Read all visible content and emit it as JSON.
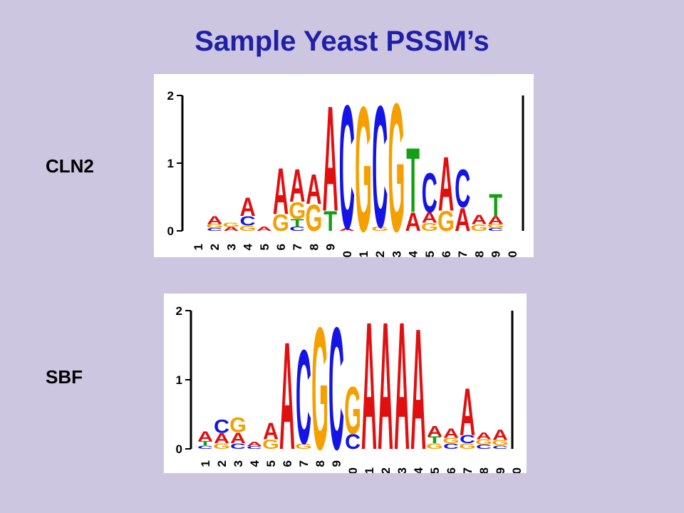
{
  "page": {
    "title": "Sample Yeast PSSM’s"
  },
  "colors": {
    "background": "#cdc6e1",
    "title": "#1f1fa8",
    "A": "#e01010",
    "C": "#1414e6",
    "G": "#f5a000",
    "T": "#14a014"
  },
  "chart_data": [
    {
      "type": "sequence-logo",
      "label": "CLN2",
      "ylim": [
        0,
        2
      ],
      "yticks": [
        "0",
        "1",
        "2"
      ],
      "categories": [
        "1",
        "2",
        "3",
        "4",
        "5",
        "6",
        "7",
        "8",
        "9",
        "10",
        "11",
        "12",
        "13",
        "14",
        "15",
        "16",
        "17",
        "18",
        "19",
        "20"
      ],
      "stacks": [
        [],
        [
          [
            "C",
            0.04
          ],
          [
            "G",
            0.06
          ],
          [
            "A",
            0.12
          ]
        ],
        [
          [
            "A",
            0.06
          ],
          [
            "G",
            0.06
          ]
        ],
        [
          [
            "G",
            0.08
          ],
          [
            "C",
            0.14
          ],
          [
            "A",
            0.28
          ]
        ],
        [
          [
            "A",
            0.06
          ]
        ],
        [
          [
            "G",
            0.25
          ],
          [
            "A",
            0.7
          ]
        ],
        [
          [
            "C",
            0.06
          ],
          [
            "T",
            0.12
          ],
          [
            "G",
            0.25
          ],
          [
            "A",
            0.5
          ]
        ],
        [
          [
            "G",
            0.4
          ],
          [
            "A",
            0.45
          ]
        ],
        [
          [
            "T",
            0.3
          ],
          [
            "A",
            1.6
          ]
        ],
        [
          [
            "A",
            0.04
          ],
          [
            "C",
            1.88
          ]
        ],
        [
          [
            "G",
            1.9
          ]
        ],
        [
          [
            "G",
            0.06
          ],
          [
            "C",
            1.85
          ]
        ],
        [
          [
            "G",
            1.95
          ]
        ],
        [
          [
            "A",
            0.28
          ],
          [
            "T",
            0.98
          ]
        ],
        [
          [
            "G",
            0.12
          ],
          [
            "A",
            0.16
          ],
          [
            "C",
            0.6
          ]
        ],
        [
          [
            "G",
            0.3
          ],
          [
            "A",
            0.82
          ]
        ],
        [
          [
            "A",
            0.35
          ],
          [
            "C",
            0.58
          ]
        ],
        [
          [
            "G",
            0.1
          ],
          [
            "A",
            0.14
          ]
        ],
        [
          [
            "C",
            0.04
          ],
          [
            "G",
            0.06
          ],
          [
            "A",
            0.12
          ],
          [
            "T",
            0.34
          ]
        ],
        []
      ]
    },
    {
      "type": "sequence-logo",
      "label": "SBF",
      "ylim": [
        0,
        2
      ],
      "yticks": [
        "0",
        "1",
        "2"
      ],
      "categories": [
        "1",
        "2",
        "3",
        "4",
        "5",
        "6",
        "7",
        "8",
        "9",
        "10",
        "11",
        "12",
        "13",
        "14",
        "15",
        "16",
        "17",
        "18",
        "19",
        "20"
      ],
      "stacks": [
        [
          [
            "C",
            0.05
          ],
          [
            "T",
            0.06
          ],
          [
            "A",
            0.15
          ]
        ],
        [
          [
            "G",
            0.08
          ],
          [
            "A",
            0.15
          ],
          [
            "C",
            0.2
          ]
        ],
        [
          [
            "C",
            0.08
          ],
          [
            "A",
            0.16
          ],
          [
            "G",
            0.22
          ]
        ],
        [
          [
            "C",
            0.04
          ],
          [
            "A",
            0.06
          ]
        ],
        [
          [
            "G",
            0.14
          ],
          [
            "A",
            0.25
          ]
        ],
        [
          [
            "A",
            1.6
          ]
        ],
        [
          [
            "G",
            0.08
          ],
          [
            "C",
            1.4
          ]
        ],
        [
          [
            "G",
            1.82
          ]
        ],
        [
          [
            "C",
            1.82
          ]
        ],
        [
          [
            "C",
            0.22
          ],
          [
            "G",
            0.7
          ]
        ],
        [
          [
            "A",
            1.9
          ]
        ],
        [
          [
            "A",
            1.9
          ]
        ],
        [
          [
            "A",
            1.9
          ]
        ],
        [
          [
            "A",
            1.8
          ]
        ],
        [
          [
            "G",
            0.08
          ],
          [
            "T",
            0.1
          ],
          [
            "A",
            0.16
          ]
        ],
        [
          [
            "C",
            0.08
          ],
          [
            "G",
            0.08
          ],
          [
            "A",
            0.14
          ]
        ],
        [
          [
            "G",
            0.08
          ],
          [
            "C",
            0.12
          ],
          [
            "A",
            0.7
          ]
        ],
        [
          [
            "C",
            0.06
          ],
          [
            "G",
            0.08
          ],
          [
            "A",
            0.1
          ]
        ],
        [
          [
            "C",
            0.05
          ],
          [
            "G",
            0.08
          ],
          [
            "A",
            0.16
          ]
        ],
        []
      ]
    }
  ]
}
